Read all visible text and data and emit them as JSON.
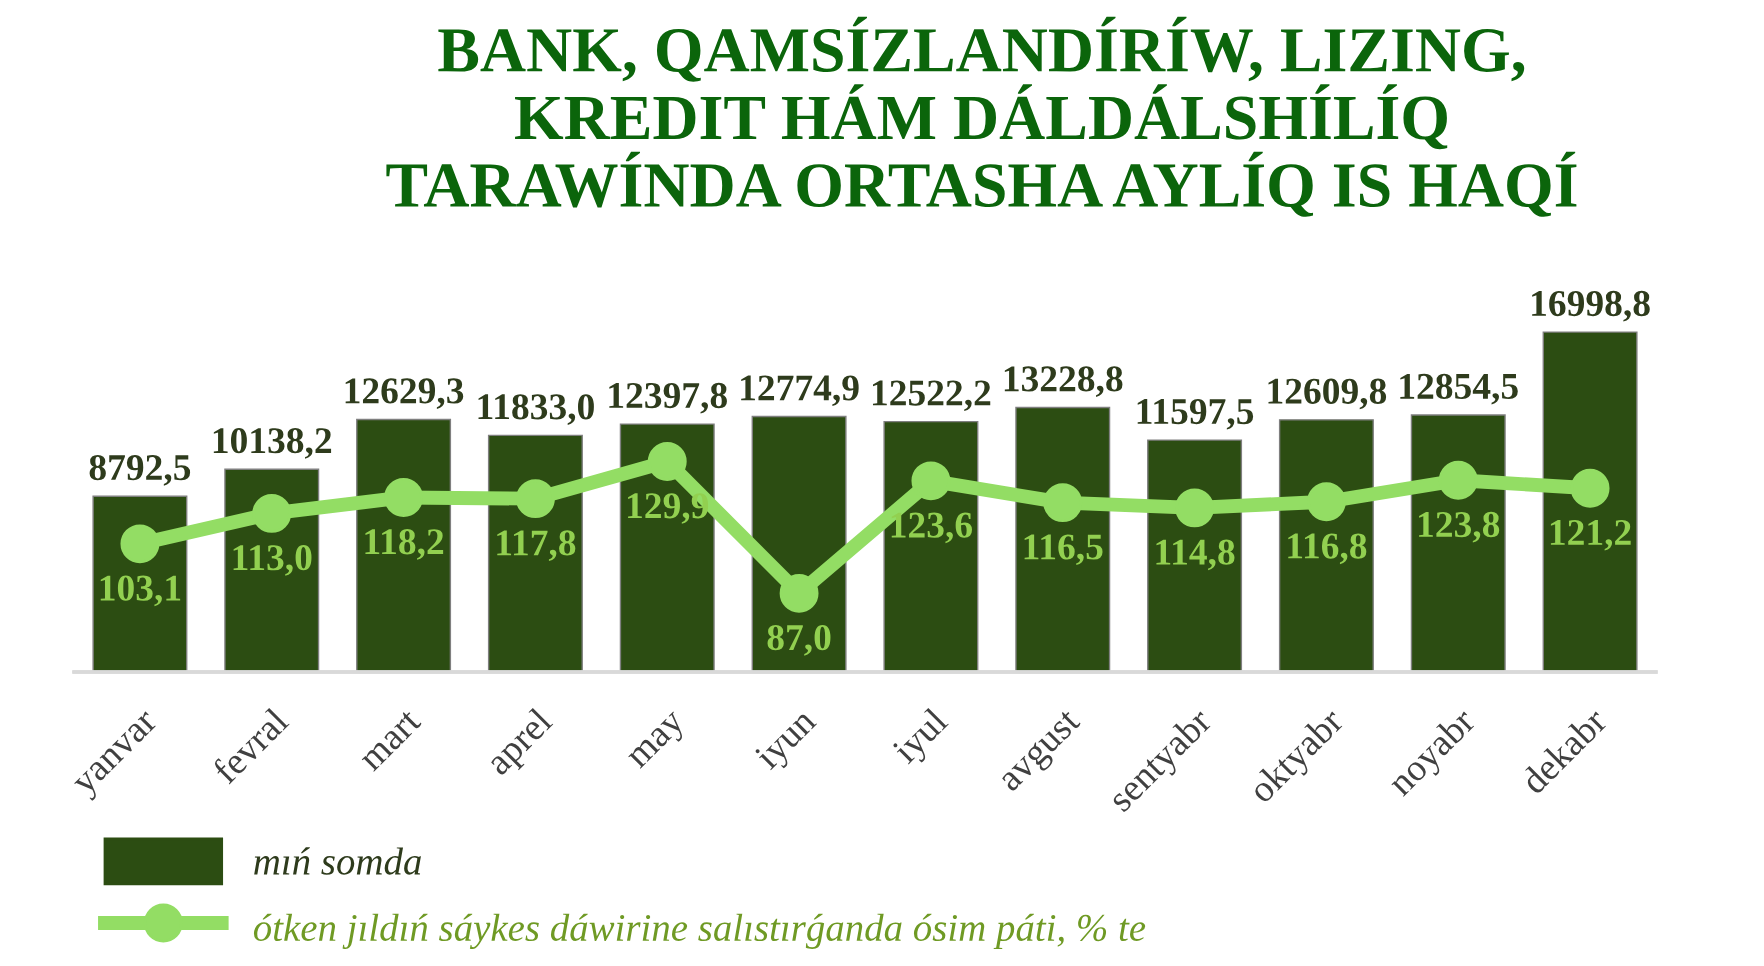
{
  "chart_data": {
    "type": "bar",
    "title": "BANK, QAMSÍZLANDÍRÍW, LIZING,\nKREDIT HÁM DÁLDÁLSHÍLÍQ\nTARAWÍNDA ORTASHA AYLÍQ IS HAQÍ",
    "categories": [
      "yanvar",
      "fevral",
      "mart",
      "aprel",
      "may",
      "iyun",
      "iyul",
      "avgust",
      "sentyabr",
      "oktyabr",
      "noyabr",
      "dekabr"
    ],
    "series": [
      {
        "name": "mıń somda",
        "color": "#2c4d12",
        "values": [
          8792.5,
          10138.2,
          12629.3,
          11833.0,
          12397.8,
          12774.9,
          12522.2,
          13228.8,
          11597.5,
          12609.8,
          12854.5,
          16998.8
        ],
        "value_labels": [
          "8792,5",
          "10138,2",
          "12629,3",
          "11833,0",
          "12397,8",
          "12774,9",
          "12522,2",
          "13228,8",
          "11597,5",
          "12609,8",
          "12854,5",
          "16998,8"
        ]
      },
      {
        "name": "ótken jıldıń sáykes dáwirine salıstırǵanda ósim páti, % te",
        "type": "line",
        "axis": "y2",
        "color": "#93dd64",
        "values": [
          103.1,
          113.0,
          118.2,
          117.8,
          129.9,
          87.0,
          123.6,
          116.5,
          114.8,
          116.8,
          123.8,
          121.2
        ],
        "value_labels": [
          "103,1",
          "113,0",
          "118,2",
          "117,8",
          "129,9",
          "87,0",
          "123,6",
          "116,5",
          "114,8",
          "116,8",
          "123,8",
          "121,2"
        ]
      }
    ],
    "tick_labels": "x",
    "legend": "bottom left",
    "marker": "circle",
    "line_style": "solid",
    "grid": false
  }
}
